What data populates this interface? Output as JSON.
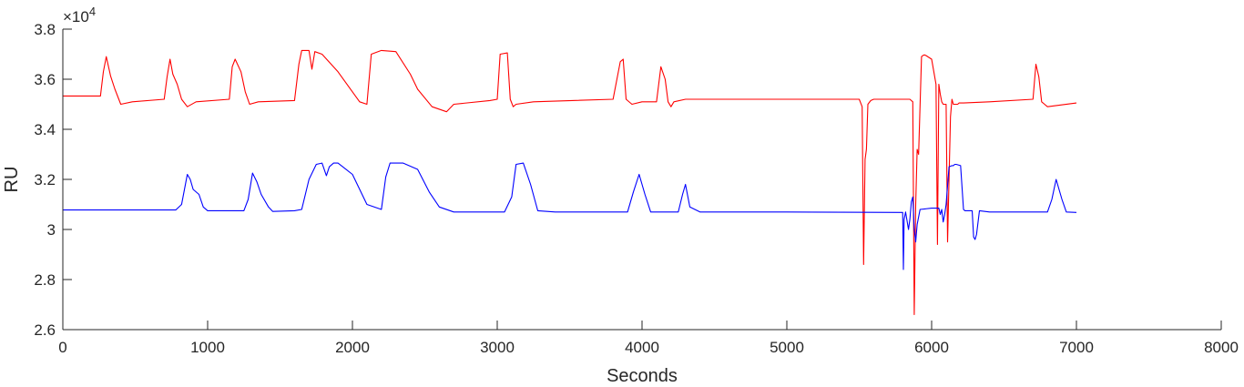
{
  "chart_data": {
    "type": "line",
    "xlabel": "Seconds",
    "ylabel": "RU",
    "y_exponent_label": "×10^4",
    "xlim": [
      0,
      8000
    ],
    "ylim": [
      2.6,
      3.8
    ],
    "x_ticks": [
      0,
      1000,
      2000,
      3000,
      4000,
      5000,
      6000,
      7000,
      8000
    ],
    "x_tick_labels": [
      "0",
      "1000",
      "2000",
      "3000",
      "4000",
      "5000",
      "6000",
      "7000",
      "8000"
    ],
    "y_ticks": [
      2.6,
      2.8,
      3.0,
      3.2,
      3.4,
      3.6,
      3.8
    ],
    "y_tick_labels": [
      "2.6",
      "2.8",
      "3",
      "3.2",
      "3.4",
      "3.6",
      "3.8"
    ],
    "grid": false,
    "box": "left-bottom",
    "series": [
      {
        "color": "#ff0000",
        "x": [
          0,
          260,
          280,
          300,
          330,
          360,
          400,
          480,
          700,
          720,
          740,
          760,
          790,
          820,
          860,
          920,
          1150,
          1170,
          1190,
          1230,
          1260,
          1290,
          1350,
          1600,
          1630,
          1650,
          1700,
          1720,
          1740,
          1790,
          1900,
          2050,
          2100,
          2130,
          2200,
          2300,
          2400,
          2450,
          2550,
          2650,
          2700,
          2950,
          3000,
          3020,
          3070,
          3090,
          3110,
          3130,
          3250,
          3800,
          3850,
          3870,
          3890,
          3930,
          4000,
          4100,
          4130,
          4160,
          4180,
          4200,
          4220,
          4300,
          5500,
          5520,
          5530,
          5540,
          5550,
          5560,
          5580,
          5600,
          5850,
          5870,
          5880,
          5890,
          5900,
          5910,
          5930,
          5940,
          5950,
          5960,
          6000,
          6030,
          6040,
          6050,
          6060,
          6070,
          6080,
          6100,
          6110,
          6130,
          6140,
          6150,
          6160,
          6170,
          6180,
          6190,
          6220,
          6400,
          6700,
          6720,
          6740,
          6760,
          6780,
          6800,
          7000
        ],
        "values": [
          3.533,
          3.533,
          3.63,
          3.69,
          3.612,
          3.56,
          3.5,
          3.51,
          3.52,
          3.61,
          3.68,
          3.62,
          3.58,
          3.52,
          3.49,
          3.51,
          3.52,
          3.65,
          3.68,
          3.63,
          3.55,
          3.5,
          3.51,
          3.515,
          3.66,
          3.715,
          3.715,
          3.64,
          3.71,
          3.7,
          3.63,
          3.51,
          3.5,
          3.7,
          3.715,
          3.71,
          3.62,
          3.56,
          3.49,
          3.47,
          3.5,
          3.515,
          3.52,
          3.7,
          3.705,
          3.52,
          3.49,
          3.5,
          3.51,
          3.52,
          3.67,
          3.68,
          3.52,
          3.5,
          3.51,
          3.51,
          3.65,
          3.6,
          3.51,
          3.49,
          3.51,
          3.52,
          3.52,
          3.49,
          2.86,
          3.28,
          3.32,
          3.5,
          3.515,
          3.52,
          3.52,
          3.51,
          2.66,
          3.1,
          3.32,
          3.3,
          3.69,
          3.695,
          3.697,
          3.695,
          3.68,
          3.58,
          2.94,
          3.58,
          3.54,
          3.51,
          3.5,
          3.5,
          2.95,
          3.45,
          3.52,
          3.5,
          3.5,
          3.5,
          3.5,
          3.505,
          3.505,
          3.51,
          3.52,
          3.66,
          3.61,
          3.51,
          3.5,
          3.49,
          3.505
        ]
      },
      {
        "color": "#0000ff",
        "x": [
          0,
          780,
          820,
          860,
          880,
          900,
          940,
          970,
          1000,
          1100,
          1250,
          1280,
          1310,
          1340,
          1370,
          1420,
          1450,
          1600,
          1650,
          1700,
          1750,
          1790,
          1820,
          1840,
          1870,
          1900,
          2000,
          2100,
          2200,
          2230,
          2260,
          2350,
          2450,
          2530,
          2600,
          2700,
          3050,
          3100,
          3130,
          3180,
          3230,
          3280,
          3400,
          3900,
          3940,
          3980,
          4020,
          4060,
          4100,
          4250,
          4280,
          4300,
          4330,
          4400,
          5000,
          5800,
          5805,
          5810,
          5820,
          5840,
          5850,
          5860,
          5870,
          5880,
          5890,
          5900,
          5920,
          6000,
          6050,
          6060,
          6070,
          6080,
          6090,
          6100,
          6120,
          6140,
          6150,
          6160,
          6170,
          6200,
          6220,
          6230,
          6250,
          6280,
          6290,
          6300,
          6310,
          6330,
          6400,
          6800,
          6830,
          6860,
          6900,
          6930,
          7000
        ],
        "values": [
          3.078,
          3.078,
          3.1,
          3.22,
          3.2,
          3.16,
          3.14,
          3.09,
          3.075,
          3.075,
          3.075,
          3.12,
          3.225,
          3.19,
          3.14,
          3.09,
          3.072,
          3.075,
          3.08,
          3.2,
          3.26,
          3.265,
          3.215,
          3.25,
          3.265,
          3.265,
          3.22,
          3.1,
          3.08,
          3.21,
          3.265,
          3.265,
          3.24,
          3.15,
          3.09,
          3.07,
          3.07,
          3.13,
          3.26,
          3.265,
          3.18,
          3.075,
          3.07,
          3.07,
          3.15,
          3.22,
          3.14,
          3.07,
          3.07,
          3.07,
          3.14,
          3.18,
          3.09,
          3.07,
          3.07,
          3.068,
          2.84,
          3.04,
          3.07,
          3.0,
          3.04,
          3.11,
          3.13,
          3.0,
          2.95,
          3.02,
          3.08,
          3.085,
          3.085,
          3.06,
          3.08,
          3.03,
          3.06,
          3.1,
          3.25,
          3.255,
          3.255,
          3.26,
          3.26,
          3.255,
          3.08,
          3.075,
          3.075,
          3.075,
          2.97,
          2.96,
          2.98,
          3.075,
          3.07,
          3.07,
          3.12,
          3.2,
          3.12,
          3.07,
          3.068
        ]
      }
    ]
  }
}
